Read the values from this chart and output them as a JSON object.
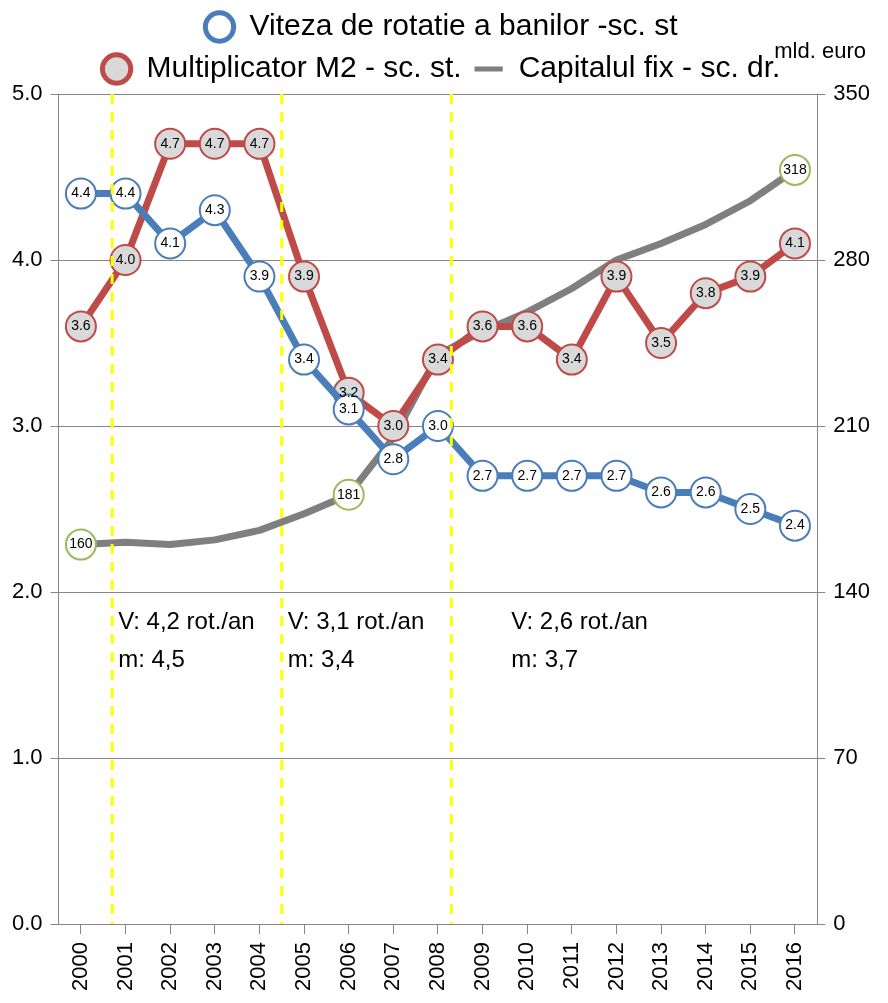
{
  "chart_data": {
    "type": "line",
    "y2label": "mld. euro",
    "x": [
      2000,
      2001,
      2002,
      2003,
      2004,
      2005,
      2006,
      2007,
      2008,
      2009,
      2010,
      2011,
      2012,
      2013,
      2014,
      2015,
      2016
    ],
    "xlim": [
      1999.5,
      2016.5
    ],
    "xticks": [
      2000,
      2001,
      2002,
      2003,
      2004,
      2005,
      2006,
      2007,
      2008,
      2009,
      2010,
      2011,
      2012,
      2013,
      2014,
      2015,
      2016
    ],
    "ylim": [
      0,
      5
    ],
    "yticks": [
      {
        "value": 0,
        "label": "0.0"
      },
      {
        "value": 1,
        "label": "1.0"
      },
      {
        "value": 2,
        "label": "2.0"
      },
      {
        "value": 3,
        "label": "3.0"
      },
      {
        "value": 4,
        "label": "4.0"
      },
      {
        "value": 5,
        "label": "5.0"
      }
    ],
    "y2lim": [
      0,
      350
    ],
    "y2ticks": [
      0,
      70,
      140,
      210,
      280,
      350
    ],
    "grid": "y",
    "legend": "top",
    "series": [
      {
        "name": "Viteza de rotatie a banilor -sc. st",
        "color": "#4a7ebb",
        "marker": "circle",
        "values": [
          4.4,
          4.4,
          4.1,
          4.3,
          3.9,
          3.4,
          3.1,
          2.8,
          3.0,
          2.7,
          2.7,
          2.7,
          2.7,
          2.6,
          2.6,
          2.5,
          2.4
        ],
        "value_labels": [
          "4.4",
          "4.4",
          "4.1",
          "4.3",
          "3.9",
          "3.4",
          "3.1",
          "2.8",
          "3.0",
          "2.7",
          "2.7",
          "2.7",
          "2.7",
          "2.6",
          "2.6",
          "2.5",
          "2.4"
        ]
      },
      {
        "name": "Multiplicator M2 - sc. st.",
        "color": "#be4b48",
        "marker": "circle",
        "values": [
          3.6,
          4.0,
          4.7,
          4.7,
          4.7,
          3.9,
          3.2,
          3.0,
          3.4,
          3.6,
          3.6,
          3.4,
          3.9,
          3.5,
          3.8,
          3.9,
          4.1
        ],
        "value_labels": [
          "3.6",
          "4.0",
          "4.7",
          "4.7",
          "4.7",
          "3.9",
          "3.2",
          "3.0",
          "3.4",
          "3.6",
          "3.6",
          "3.4",
          "3.9",
          "3.5",
          "3.8",
          "3.9",
          "4.1"
        ]
      },
      {
        "name": "Capitalul fix - sc. dr.",
        "color": "#7f7f7f",
        "marker": "none",
        "axis": "y2",
        "values": [
          160,
          161,
          160,
          162,
          166,
          173,
          181,
          205,
          240,
          250,
          258,
          268,
          280,
          287,
          295,
          305,
          318
        ],
        "value_labels": [
          "160",
          null,
          null,
          null,
          null,
          null,
          "181",
          null,
          null,
          null,
          null,
          null,
          null,
          null,
          null,
          null,
          "318"
        ]
      }
    ],
    "ref_lines": [
      {
        "axis": "x",
        "value": 2000.7,
        "color": "#ffff00",
        "line_style": "dashed"
      },
      {
        "axis": "x",
        "value": 2004.5,
        "color": "#ffff00",
        "line_style": "dashed"
      },
      {
        "axis": "x",
        "value": 2008.3,
        "color": "#ffff00",
        "line_style": "dashed"
      }
    ],
    "annotations": [
      "V: 4,2 rot./an",
      "m: 4,5",
      "V: 3,1 rot./an",
      "m: 3,4",
      "V: 2,6 rot./an",
      "m: 3,7"
    ]
  }
}
